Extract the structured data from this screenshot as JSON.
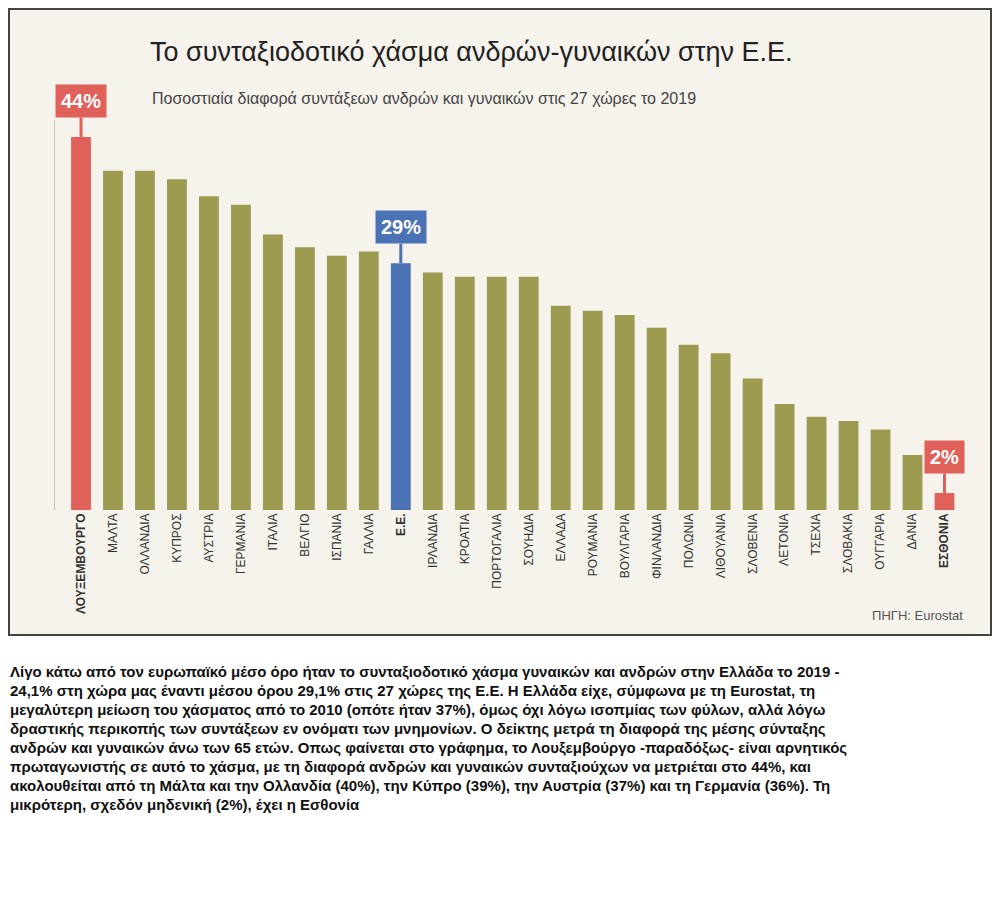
{
  "chart_data": {
    "type": "bar",
    "title": "Το συνταξιοδοτικό χάσμα ανδρών-γυναικών στην Ε.Ε.",
    "subtitle": "Ποσοστιαία διαφορά συντάξεων ανδρών και γυναικών στις 27 χώρες το 2019",
    "categories": [
      "ΛΟΥΞΕΜΒΟΥΡΓΟ",
      "ΜΑΛΤΑ",
      "ΟΛΛΑΝΔΙΑ",
      "ΚΥΠΡΟΣ",
      "ΑΥΣΤΡΙΑ",
      "ΓΕΡΜΑΝΙΑ",
      "ΙΤΑΛΙΑ",
      "ΒΕΛΓΙΟ",
      "ΙΣΠΑΝΙΑ",
      "ΓΑΛΛΙΑ",
      "Ε.Ε.",
      "ΙΡΛΑΝΔΙΑ",
      "ΚΡΟΑΤΙΑ",
      "ΠΟΡΤΟΓΑΛΙΑ",
      "ΣΟΥΗΔΙΑ",
      "ΕΛΛΑΔΑ",
      "ΡΟΥΜΑΝΙΑ",
      "ΒΟΥΛΓΑΡΙΑ",
      "ΦΙΝΛΑΝΔΙΑ",
      "ΠΟΛΩΝΙΑ",
      "ΛΙΘΟΥΑΝΙΑ",
      "ΣΛΟΒΕΝΙΑ",
      "ΛΕΤΟΝΙΑ",
      "ΤΣΕΧΙΑ",
      "ΣΛΟΒΑΚΙΑ",
      "ΟΥΓΓΑΡΙΑ",
      "ΔΑΝΙΑ",
      "ΕΣΘΟΝΙΑ"
    ],
    "values": [
      44,
      40,
      40,
      39,
      37,
      36,
      32.5,
      31,
      30,
      30.5,
      29.1,
      28,
      27.5,
      27.5,
      27.5,
      24.1,
      23.5,
      23,
      21.5,
      19.5,
      18.5,
      15.5,
      12.5,
      11,
      10.5,
      9.5,
      6.5,
      2
    ],
    "colors": [
      "#e0605a",
      "#9c9b4f",
      "#9c9b4f",
      "#9c9b4f",
      "#9c9b4f",
      "#9c9b4f",
      "#9c9b4f",
      "#9c9b4f",
      "#9c9b4f",
      "#9c9b4f",
      "#4a72b4",
      "#9c9b4f",
      "#9c9b4f",
      "#9c9b4f",
      "#9c9b4f",
      "#9c9b4f",
      "#9c9b4f",
      "#9c9b4f",
      "#9c9b4f",
      "#9c9b4f",
      "#9c9b4f",
      "#9c9b4f",
      "#9c9b4f",
      "#9c9b4f",
      "#9c9b4f",
      "#9c9b4f",
      "#9c9b4f",
      "#e0605a"
    ],
    "ylim": [
      0,
      46
    ],
    "yticks": [],
    "grid": false,
    "tick_labels": "x",
    "annotations": [
      {
        "category": "ΛΟΥΞΕΜΒΟΥΡΓΟ",
        "text": "44%"
      },
      {
        "category": "Ε.Ε.",
        "text": "29%"
      },
      {
        "category": "ΕΣΘΟΝΙΑ",
        "text": "2%"
      }
    ],
    "source": "ΠΗΓΗ: Eurostat"
  },
  "caption": "Λίγο κάτω από τον ευρωπαϊκό μέσο όρο ήταν το συνταξιοδοτικό χάσμα γυναικών και ανδρών στην Ελλάδα το 2019 - 24,1% στη χώρα μας έναντι μέσου όρου 29,1% στις 27 χώρες της Ε.Ε. Η Ελλάδα είχε, σύμφωνα με τη Eurostat, τη μεγαλύτερη μείωση του χάσματος από το 2010 (οπότε ήταν 37%), όμως όχι λόγω ισοπμίας των φύλων, αλλά λόγω δραστικής περικοπής των συντάξεων εν ονόματι των μνημονίων. Ο δείκτης μετρά τη διαφορά της μέσης σύνταξης ανδρών και γυναικών άνω των 65 ετών. Οπως φαίνεται στο γράφημα, το Λουξεμβούργο -παραδόξως- είναι αρνητικός πρωταγωνιστής σε αυτό το χάσμα, με τη διαφορά ανδρών και γυναικών συνταξιούχων να μετριέται στο 44%, και ακολουθείται από τη Μάλτα και την Ολλανδία (40%), την Κύπρο (39%), την Αυστρία (37%) και τη Γερμανία (36%). Τη μικρότερη, σχεδόν μηδενική (2%), έχει η Εσθονία"
}
